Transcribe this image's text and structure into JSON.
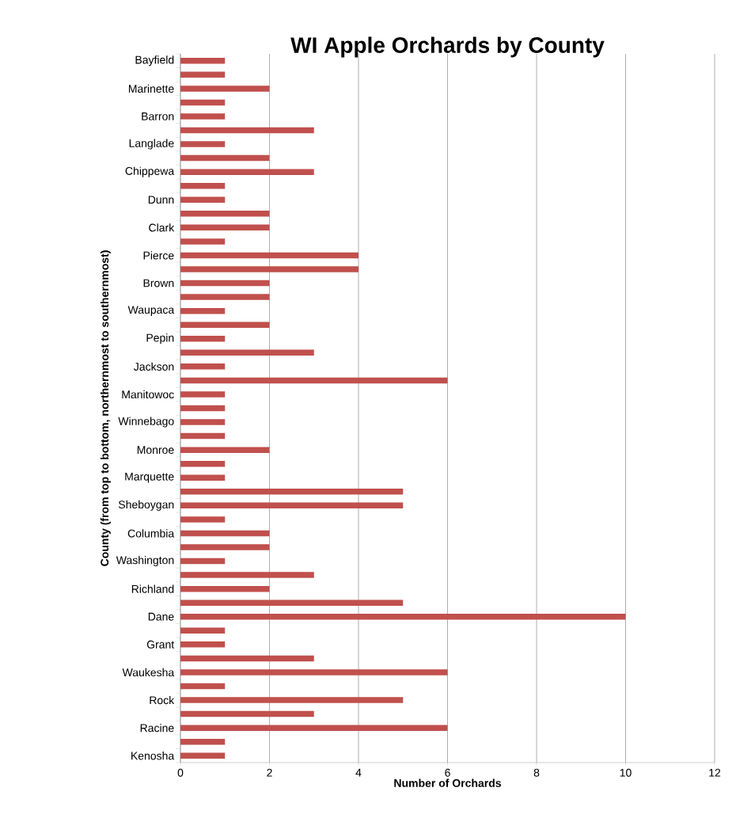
{
  "chart_data": {
    "type": "bar",
    "orientation": "horizontal",
    "title": "WI Apple Orchards by County",
    "xlabel": "Number of Orchards",
    "ylabel": "County  (from top to bottom, northernmost  to southernmost)",
    "categories": [
      "Bayfield",
      null,
      "Marinette",
      null,
      "Barron",
      null,
      "Langlade",
      null,
      "Chippewa",
      null,
      "Dunn",
      null,
      "Clark",
      null,
      "Pierce",
      null,
      "Brown",
      null,
      "Waupaca",
      null,
      "Pepin",
      null,
      "Jackson",
      null,
      "Manitowoc",
      null,
      "Winnebago",
      null,
      "Monroe",
      null,
      "Marquette",
      null,
      "Sheboygan",
      null,
      "Columbia",
      null,
      "Washington",
      null,
      "Richland",
      null,
      "Dane",
      null,
      "Grant",
      null,
      "Waukesha",
      null,
      "Rock",
      null,
      "Racine",
      null,
      "Kenosha"
    ],
    "values": [
      1,
      1,
      2,
      1,
      1,
      3,
      1,
      2,
      3,
      1,
      1,
      2,
      2,
      1,
      4,
      4,
      2,
      2,
      1,
      2,
      1,
      3,
      1,
      6,
      1,
      1,
      1,
      1,
      2,
      1,
      1,
      5,
      5,
      1,
      2,
      2,
      1,
      3,
      2,
      5,
      10,
      1,
      1,
      3,
      6,
      1,
      5,
      3,
      6,
      1,
      1
    ],
    "color": "#c0504d",
    "xlim": [
      0,
      12
    ],
    "xticks": [
      0,
      2,
      4,
      6,
      8,
      10,
      12
    ],
    "grid": "x"
  }
}
